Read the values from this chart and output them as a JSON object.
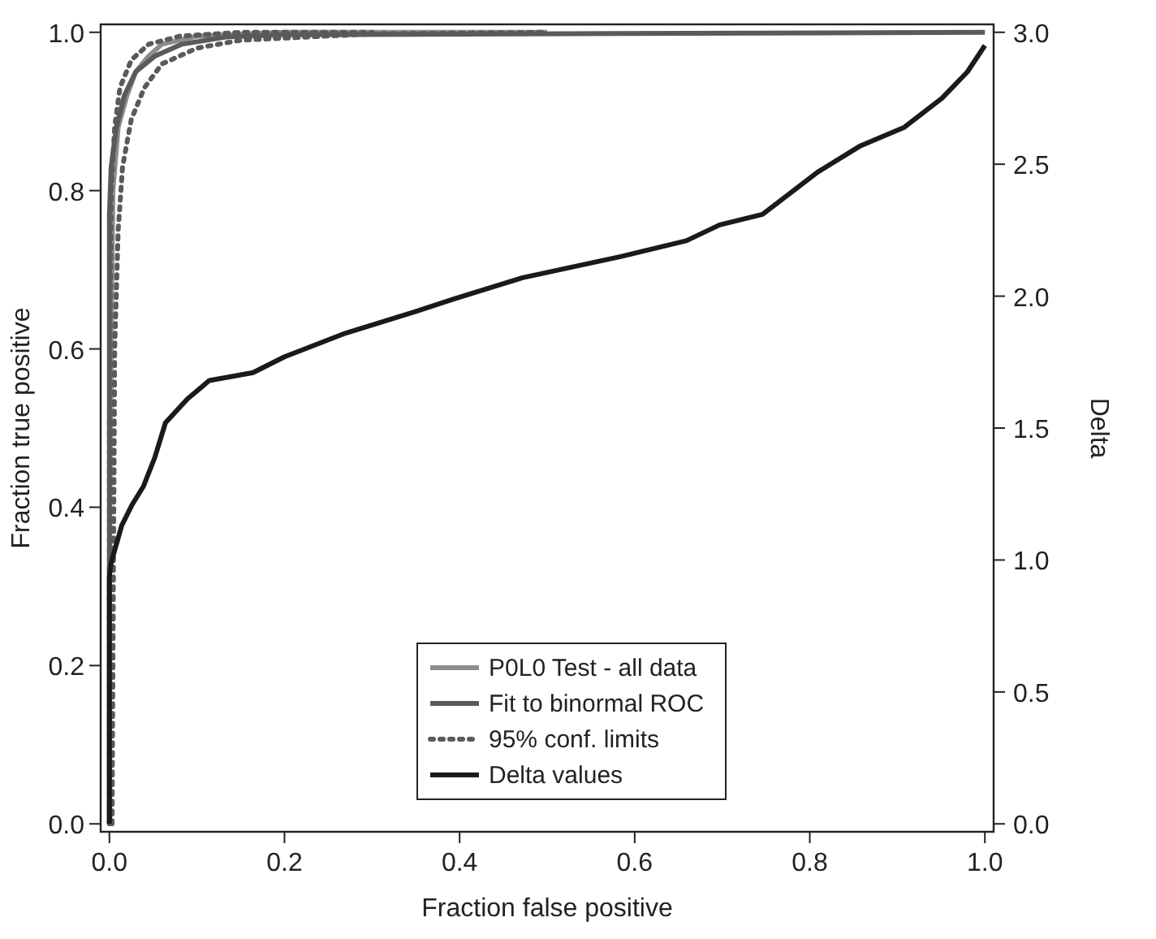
{
  "chart_data": {
    "type": "line",
    "xlabel": "Fraction false positive",
    "ylabel": "Fraction true positive",
    "y2label": "Delta",
    "xlim": [
      -0.01,
      1.01
    ],
    "ylim": [
      -0.01,
      1.01
    ],
    "y2lim": [
      -0.03,
      3.03
    ],
    "xticks": [
      {
        "value": 0,
        "label": "0.0"
      },
      {
        "value": 0.2,
        "label": "0.2"
      },
      {
        "value": 0.4,
        "label": "0.4"
      },
      {
        "value": 0.6,
        "label": "0.6"
      },
      {
        "value": 0.8,
        "label": "0.8"
      },
      {
        "value": 1,
        "label": "1.0"
      }
    ],
    "yticks": [
      {
        "value": 0,
        "label": "0.0"
      },
      {
        "value": 0.2,
        "label": "0.2"
      },
      {
        "value": 0.4,
        "label": "0.4"
      },
      {
        "value": 0.6,
        "label": "0.6"
      },
      {
        "value": 0.8,
        "label": "0.8"
      },
      {
        "value": 1,
        "label": "1.0"
      }
    ],
    "y2ticks": [
      {
        "value": 0,
        "label": "0.0"
      },
      {
        "value": 0.5,
        "label": "0.5"
      },
      {
        "value": 1,
        "label": "1.0"
      },
      {
        "value": 1.5,
        "label": "1.5"
      },
      {
        "value": 2,
        "label": "2.0"
      },
      {
        "value": 2.5,
        "label": "2.5"
      },
      {
        "value": 3,
        "label": "3.0"
      }
    ],
    "grid": false,
    "legend": "bottom",
    "series": [
      {
        "name": "P0L0 Test - all data",
        "color": "#8c8c8c",
        "line_style": "solid",
        "x": [
          0,
          0,
          0.002,
          0.004,
          0.01,
          0.02,
          0.03,
          0.045,
          0.06,
          0.1,
          0.2,
          0.5
        ],
        "values": [
          0,
          0.3,
          0.6,
          0.8,
          0.88,
          0.92,
          0.95,
          0.97,
          0.985,
          0.995,
          1,
          1
        ]
      },
      {
        "name": "Fit to binormal ROC",
        "color": "#5a5a5a",
        "line_style": "solid",
        "x": [
          0,
          0,
          0,
          0.002,
          0.008,
          0.017,
          0.03,
          0.052,
          0.083,
          0.133,
          0.2,
          1
        ],
        "values": [
          0,
          0.64,
          0.77,
          0.83,
          0.88,
          0.92,
          0.95,
          0.97,
          0.985,
          0.994,
          0.997,
          1
        ]
      },
      {
        "name": "95% conf. limits",
        "color": "#5a5a5a",
        "line_style": "dotted",
        "x": [
          0,
          0,
          0.002,
          0.006,
          0.012,
          0.025,
          0.045,
          0.08,
          0.15,
          0.3
        ],
        "values": [
          0,
          0.5,
          0.8,
          0.88,
          0.93,
          0.965,
          0.985,
          0.995,
          1,
          1
        ]
      },
      {
        "color": "#5a5a5a",
        "line_style": "dotted",
        "x": [
          0.003,
          0.006,
          0.01,
          0.015,
          0.025,
          0.04,
          0.06,
          0.1,
          0.15,
          0.3,
          0.5
        ],
        "values": [
          0,
          0.6,
          0.75,
          0.83,
          0.89,
          0.93,
          0.96,
          0.98,
          0.99,
          0.998,
          1
        ]
      },
      {
        "name": "Delta values",
        "color": "#1a1a1a",
        "line_style": "solid",
        "axis": "y2",
        "x": [
          0,
          0,
          0.002,
          0.014,
          0.026,
          0.039,
          0.052,
          0.064,
          0.089,
          0.114,
          0.164,
          0.2,
          0.27,
          0.348,
          0.394,
          0.472,
          0.584,
          0.659,
          0.697,
          0.746,
          0.809,
          0.858,
          0.908,
          0.951,
          0.98,
          1
        ],
        "values": [
          0,
          0.94,
          0.99,
          1.13,
          1.21,
          1.28,
          1.39,
          1.52,
          1.61,
          1.68,
          1.71,
          1.77,
          1.86,
          1.94,
          1.99,
          2.07,
          2.15,
          2.21,
          2.27,
          2.31,
          2.47,
          2.57,
          2.64,
          2.75,
          2.85,
          2.95
        ]
      }
    ]
  }
}
